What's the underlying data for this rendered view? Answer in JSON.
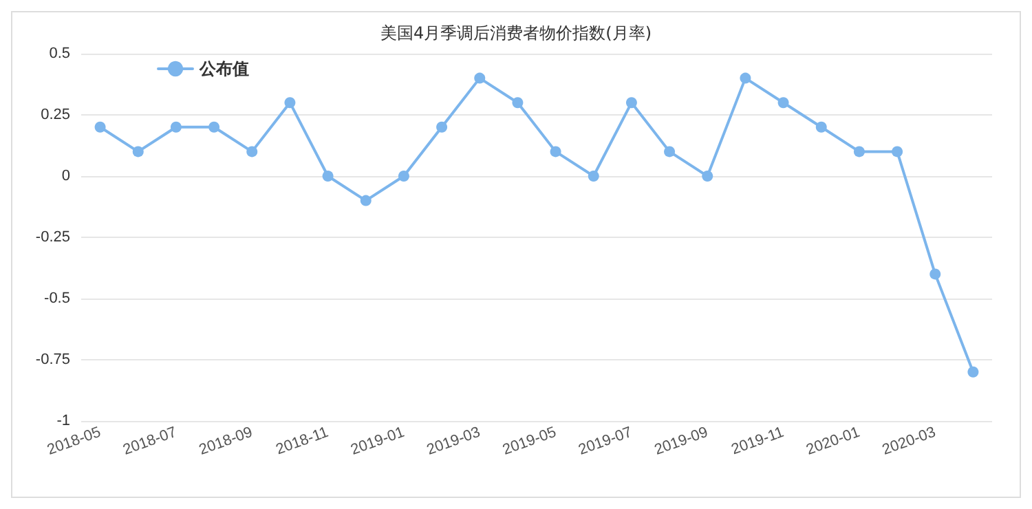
{
  "chart_data": {
    "type": "line",
    "title": "美国4月季调后消费者物价指数(月率)",
    "categories": [
      "2018-05",
      null,
      "2018-07",
      null,
      "2018-09",
      null,
      "2018-11",
      null,
      "2019-01",
      null,
      "2019-03",
      null,
      "2019-05",
      null,
      "2019-07",
      null,
      "2019-09",
      null,
      "2019-11",
      null,
      "2020-01",
      null,
      "2020-03",
      null
    ],
    "series": [
      {
        "name": "公布值",
        "color": "#7cb5ec",
        "values": [
          0.2,
          0.1,
          0.2,
          0.2,
          0.1,
          0.3,
          0,
          -0.1,
          0,
          0.2,
          0.4,
          0.3,
          0.1,
          0,
          0.3,
          0.1,
          0,
          0.4,
          0.3,
          0.2,
          0.1,
          0.1,
          -0.4,
          -0.8
        ]
      }
    ],
    "ylim": [
      -1,
      0.5
    ],
    "yticks": [
      -1,
      -0.75,
      -0.5,
      -0.25,
      0,
      0.25,
      0.5
    ],
    "grid": "y",
    "legend": "top left",
    "marker": "circle",
    "line_style": "solid"
  }
}
